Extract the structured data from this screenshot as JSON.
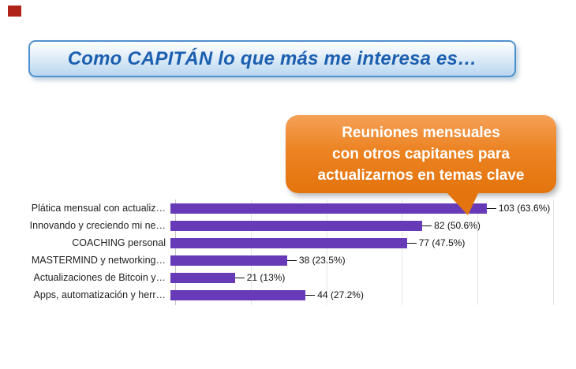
{
  "decor": {
    "corner_square_color": "#b02318"
  },
  "title": {
    "text": "Como CAPITÁN lo que más me interesa es…"
  },
  "callout": {
    "bg_color": "#ec8322",
    "text_color": "#ffffff",
    "lines": [
      "Reuniones mensuales",
      "con otros capitanes para",
      "actualizarnos en temas clave"
    ]
  },
  "chart_data": {
    "type": "bar",
    "orientation": "horizontal",
    "title": "",
    "xlabel": "",
    "ylabel": "",
    "categories": [
      "Plática mensual con actualiz…",
      "Innovando y creciendo mi ne…",
      "COACHING personal",
      "MASTERMIND y networking…",
      "Actualizaciones de Bitcoin y…",
      "Apps, automatización y herr…"
    ],
    "values": [
      103,
      82,
      77,
      38,
      21,
      44
    ],
    "value_labels": [
      "103 (63.6%)",
      "82 (50.6%)",
      "77 (47.5%)",
      "38 (23.5%)",
      "21 (13%)",
      "44 (27.2%)"
    ],
    "bar_color": "#673ab7",
    "xlim": [
      0,
      130
    ],
    "gridlines": [
      0,
      25,
      50,
      75,
      100,
      125
    ],
    "legend": "none",
    "grid": "faint-vertical"
  }
}
